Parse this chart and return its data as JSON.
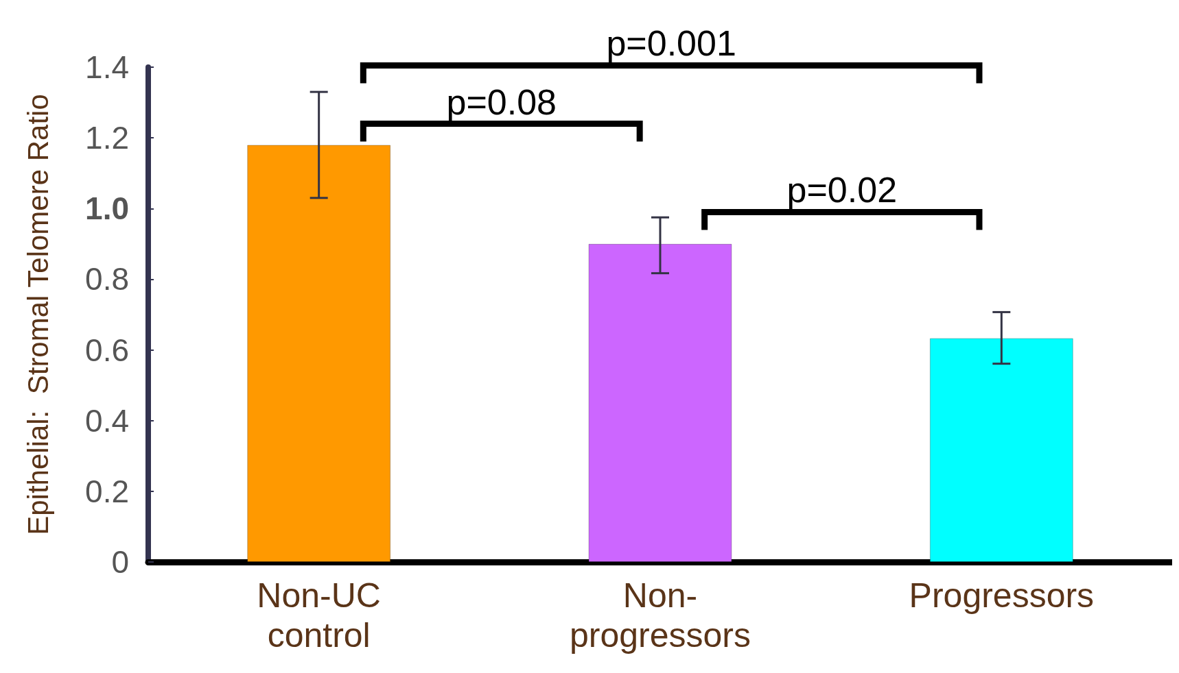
{
  "chart_data": {
    "type": "bar",
    "ylabel": "Epithelial:  Stromal Telomere Ratio",
    "categories": [
      "Non-UC\ncontrol",
      "Non-\nprogressors",
      "Progressors"
    ],
    "values": [
      1.18,
      0.9,
      0.633
    ],
    "colors": [
      "#ff9900",
      "#cc66ff",
      "#00ffff"
    ],
    "errors": [
      [
        1.03,
        1.33
      ],
      [
        0.817,
        0.975
      ],
      [
        0.561,
        0.707
      ]
    ],
    "ylim": [
      0,
      1.4
    ],
    "yticks": [
      0,
      0.2,
      0.4,
      0.6,
      0.8,
      {
        "value": 1,
        "label": "1.0"
      },
      1.2,
      1.4
    ],
    "grid": false,
    "annotations": [
      "p=0.001",
      "p=0.08",
      "p=0.02"
    ]
  }
}
